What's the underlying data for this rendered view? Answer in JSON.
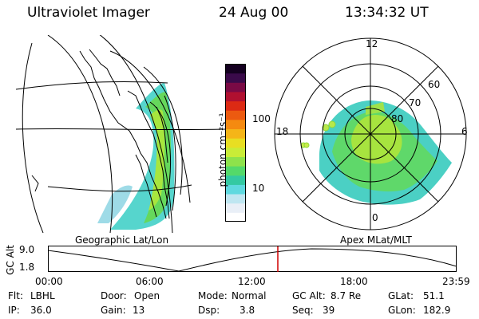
{
  "header": {
    "title": "Ultraviolet Imager",
    "date": "24 Aug 00",
    "time": "13:34:32 UT"
  },
  "colorbar": {
    "unit_label": "photon cm⁻²s⁻¹",
    "ticks": [
      "100",
      "10"
    ],
    "colors": [
      "#ffffff",
      "#e9eff7",
      "#bfe6f1",
      "#5fd9df",
      "#34c9a2",
      "#54d96a",
      "#8ee24b",
      "#c9ec37",
      "#e8de22",
      "#f5b518",
      "#f58a10",
      "#ec5a10",
      "#dc2a14",
      "#b01030",
      "#7a0a45",
      "#3a0a4a",
      "#140020"
    ]
  },
  "polar_plot": {
    "hour_labels": {
      "top": "12",
      "left": "18",
      "right": "6",
      "bottom": "0"
    },
    "lat_labels": [
      "60",
      "70",
      "80"
    ]
  },
  "panels": {
    "left_caption": "Geographic Lat/Lon",
    "right_caption": "Apex MLat/MLT"
  },
  "altitude_plot": {
    "ylabel": "GC Alt",
    "yticks": [
      "9.0",
      "1.8"
    ],
    "xticks": [
      "00:00",
      "06:00",
      "12:00",
      "18:00",
      "23:59"
    ],
    "marker_color": "#d00000"
  },
  "info": {
    "row1": [
      {
        "label": "Flt:",
        "value": "LBHL"
      },
      {
        "label": "Door:",
        "value": "Open"
      },
      {
        "label": "Mode:",
        "value": "Normal"
      },
      {
        "label": "GC Alt:",
        "value": "8.7 Re"
      },
      {
        "label": "GLat:",
        "value": "51.1"
      }
    ],
    "row2": [
      {
        "label": "IP:",
        "value": "36.0"
      },
      {
        "label": "Gain:",
        "value": "13"
      },
      {
        "label": "Dsp:",
        "value": "3.8"
      },
      {
        "label": "Seq:",
        "value": "39"
      },
      {
        "label": "GLon:",
        "value": "182.9"
      }
    ]
  }
}
